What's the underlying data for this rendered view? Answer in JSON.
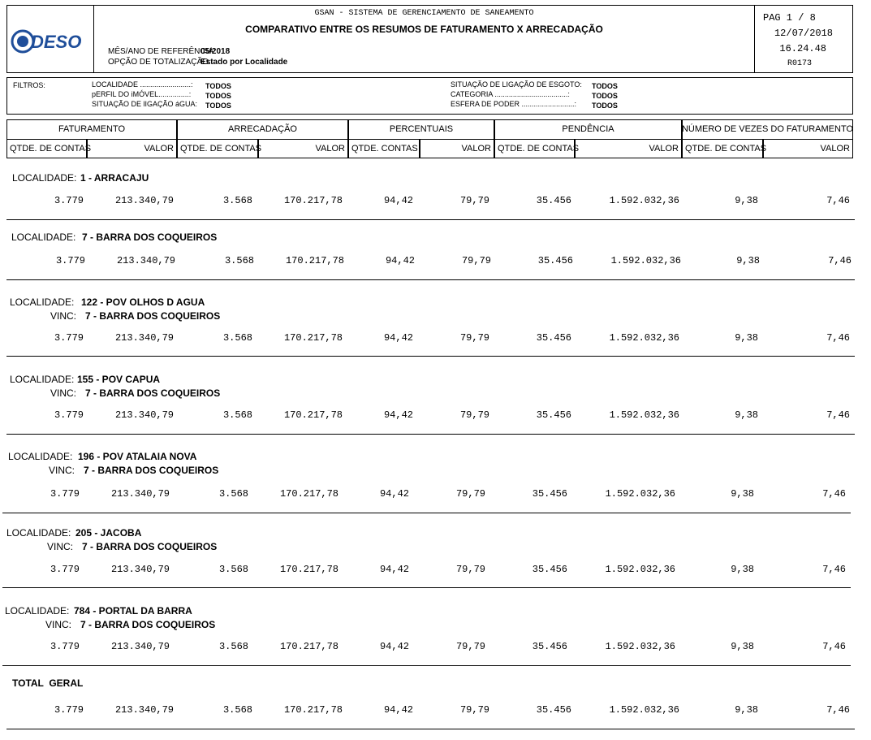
{
  "header": {
    "system": "GSAN - SISTEMA DE GERENCIAMENTO DE SANEAMENTO",
    "title": "COMPARATIVO ENTRE OS RESUMOS DE FATURAMENTO X ARRECADAÇÃO",
    "logo": "DESO",
    "ref_label": "MÊS/ANO DE REFERÊNCIA:",
    "ref_value": "05/2018",
    "tot_label": "OPÇÃO DE TOTALIZAÇÃO.:",
    "tot_value": "Estado por Localidade",
    "page": "PAG 1 / 8",
    "date": "12/07/2018",
    "time": "16.24.48",
    "code": "R0173"
  },
  "filters": {
    "label": "FILTROS:",
    "items": [
      {
        "label": "LOCALIDADE .........................:",
        "value": "TODOS"
      },
      {
        "label": "pERFIL DO iMÓVEL...............:",
        "value": "TODOS"
      },
      {
        "label": "SITUAÇÃO DE lIGAÇÃO áGUA:",
        "value": "TODOS"
      },
      {
        "label": "SITUAÇÃO DE LIGAÇÃO DE ESGOTO:",
        "value": "TODOS"
      },
      {
        "label": "CATEGORIA ....................................:",
        "value": "TODOS"
      },
      {
        "label": "ESFERA DE PODER ..........................:",
        "value": "TODOS"
      }
    ]
  },
  "table": {
    "groups": [
      "FATURAMENTO",
      "ARRECADAÇÃO",
      "PERCENTUAIS",
      "PENDÊNCIA",
      "NÚMERO DE VEZES DO FATURAMENTO"
    ],
    "columns": [
      "QTDE. DE CONTAS",
      "VALOR",
      "QTDE. DE CONTAS",
      "VALOR",
      "QTDE. CONTAS",
      "VALOR",
      "QTDE. DE CONTAS",
      "VALOR",
      "QTDE. DE CONTAS",
      "VALOR"
    ]
  },
  "sections": [
    {
      "label": "LOCALIDADE:",
      "name": "1 - ARRACAJU",
      "values": [
        "3.779",
        "213.340,79",
        "3.568",
        "170.217,78",
        "94,42",
        "79,79",
        "35.456",
        "1.592.032,36",
        "9,38",
        "7,46"
      ]
    },
    {
      "label": "LOCALIDADE:",
      "name": "7 - BARRA DOS COQUEIROS",
      "values": [
        "3.779",
        "213.340,79",
        "3.568",
        "170.217,78",
        "94,42",
        "79,79",
        "35.456",
        "1.592.032,36",
        "9,38",
        "7,46"
      ]
    },
    {
      "label": "LOCALIDADE:",
      "name": "122 - POV OLHOS D AGUA",
      "vinc_label": "VINC:",
      "vinc": "7 - BARRA DOS COQUEIROS",
      "values": [
        "3.779",
        "213.340,79",
        "3.568",
        "170.217,78",
        "94,42",
        "79,79",
        "35.456",
        "1.592.032,36",
        "9,38",
        "7,46"
      ]
    },
    {
      "label": "LOCALIDADE:",
      "name": "155 - POV CAPUA",
      "vinc_label": "VINC:",
      "vinc": "7 - BARRA DOS COQUEIROS",
      "values": [
        "3.779",
        "213.340,79",
        "3.568",
        "170.217,78",
        "94,42",
        "79,79",
        "35.456",
        "1.592.032,36",
        "9,38",
        "7,46"
      ]
    },
    {
      "label": "LOCALIDADE:",
      "name": "196 - POV ATALAIA NOVA",
      "vinc_label": "VINC:",
      "vinc": "7 - BARRA DOS COQUEIROS",
      "values": [
        "3.779",
        "213.340,79",
        "3.568",
        "170.217,78",
        "94,42",
        "79,79",
        "35.456",
        "1.592.032,36",
        "9,38",
        "7,46"
      ]
    },
    {
      "label": "LOCALIDADE:",
      "name": "205 - JACOBA",
      "vinc_label": "VINC:",
      "vinc": "7 - BARRA DOS COQUEIROS",
      "values": [
        "3.779",
        "213.340,79",
        "3.568",
        "170.217,78",
        "94,42",
        "79,79",
        "35.456",
        "1.592.032,36",
        "9,38",
        "7,46"
      ]
    },
    {
      "label": "LOCALIDADE:",
      "name": "784 - PORTAL DA BARRA",
      "vinc_label": "VINC:",
      "vinc": "7 - BARRA DOS COQUEIROS",
      "values": [
        "3.779",
        "213.340,79",
        "3.568",
        "170.217,78",
        "94,42",
        "79,79",
        "35.456",
        "1.592.032,36",
        "9,38",
        "7,46"
      ]
    }
  ],
  "total": {
    "label": "TOTAL  GERAL",
    "values": [
      "3.779",
      "213.340,79",
      "3.568",
      "170.217,78",
      "94,42",
      "79,79",
      "35.456",
      "1.592.032,36",
      "9,38",
      "7,46"
    ]
  }
}
